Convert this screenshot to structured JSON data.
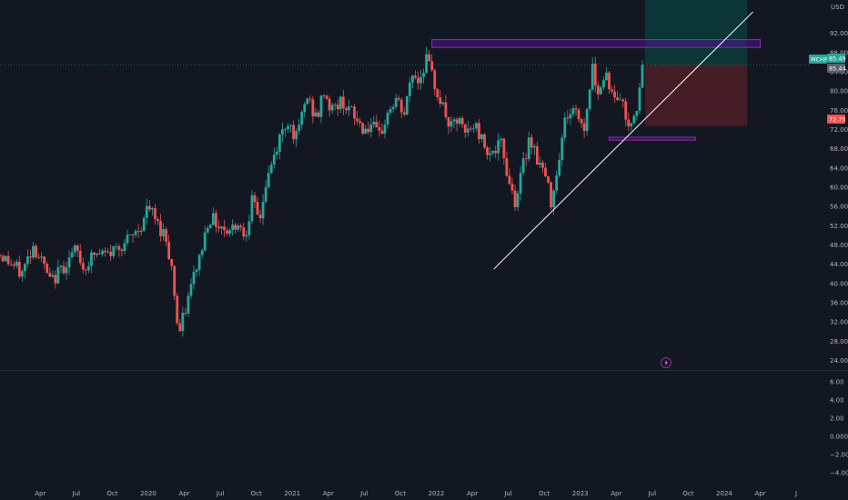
{
  "symbol": "MCHP",
  "currency": "USD",
  "colors": {
    "background": "#131722",
    "up": "#26a69a",
    "down": "#ef5350",
    "grid_line": "#2a2e39",
    "trendline": "#ffffff",
    "zone_fill": "#4a148c",
    "zone_stroke": "#9c27b0",
    "target_fill": "#0b3b3a",
    "stop_fill": "#4a1e27",
    "axis_text": "#b2b5be"
  },
  "price_labels": {
    "last": "85.49",
    "entry": "85.44",
    "stop": "72.75"
  },
  "indicator_icon": "lightning-icon",
  "chart_data": [
    {
      "type": "candlestick",
      "title": "",
      "ylabel": "USD",
      "ylim": [
        22,
        98
      ],
      "y_ticks": [
        "92.00",
        "88.00",
        "84.00",
        "80.00",
        "76.00",
        "72.00",
        "68.00",
        "64.00",
        "60.00",
        "56.00",
        "52.00",
        "48.00",
        "44.00",
        "40.00",
        "36.00",
        "32.00",
        "28.00",
        "24.00"
      ],
      "y_tick_values": [
        92,
        88,
        84,
        80,
        76,
        72,
        68,
        64,
        60,
        56,
        52,
        48,
        44,
        40,
        36,
        32,
        28,
        24
      ],
      "x_ticks": [
        "Apr",
        "Jul",
        "Oct",
        "2020",
        "Apr",
        "Jul",
        "Oct",
        "2021",
        "Apr",
        "Jul",
        "Oct",
        "2022",
        "Apr",
        "Jul",
        "Oct",
        "2023",
        "Apr",
        "Jul",
        "Oct",
        "2024",
        "Apr",
        "J"
      ],
      "x_tick_values": [
        2019.25,
        2019.5,
        2019.75,
        2020.0,
        2020.25,
        2020.5,
        2020.75,
        2021.0,
        2021.25,
        2021.5,
        2021.75,
        2022.0,
        2022.25,
        2022.5,
        2022.75,
        2023.0,
        2023.25,
        2023.5,
        2023.75,
        2024.0,
        2024.25,
        2024.5
      ],
      "xlim": [
        2018.97,
        2024.55
      ],
      "price_path": [
        [
          2018.97,
          46
        ],
        [
          2019.05,
          44
        ],
        [
          2019.12,
          42
        ],
        [
          2019.2,
          48
        ],
        [
          2019.27,
          44
        ],
        [
          2019.32,
          40
        ],
        [
          2019.42,
          44
        ],
        [
          2019.5,
          47
        ],
        [
          2019.55,
          43
        ],
        [
          2019.62,
          46
        ],
        [
          2019.72,
          46
        ],
        [
          2019.8,
          48
        ],
        [
          2019.87,
          49
        ],
        [
          2019.95,
          52
        ],
        [
          2020.0,
          56
        ],
        [
          2020.07,
          52
        ],
        [
          2020.12,
          50
        ],
        [
          2020.17,
          42
        ],
        [
          2020.2,
          32
        ],
        [
          2020.22,
          30
        ],
        [
          2020.27,
          36
        ],
        [
          2020.32,
          42
        ],
        [
          2020.37,
          47
        ],
        [
          2020.42,
          54
        ],
        [
          2020.5,
          52
        ],
        [
          2020.57,
          51
        ],
        [
          2020.62,
          53
        ],
        [
          2020.67,
          50
        ],
        [
          2020.72,
          57
        ],
        [
          2020.77,
          53
        ],
        [
          2020.82,
          61
        ],
        [
          2020.87,
          66
        ],
        [
          2020.92,
          71
        ],
        [
          2020.97,
          74
        ],
        [
          2021.03,
          70
        ],
        [
          2021.1,
          79
        ],
        [
          2021.17,
          74
        ],
        [
          2021.22,
          80
        ],
        [
          2021.27,
          76
        ],
        [
          2021.35,
          78
        ],
        [
          2021.42,
          75
        ],
        [
          2021.5,
          72
        ],
        [
          2021.55,
          73
        ],
        [
          2021.6,
          70
        ],
        [
          2021.67,
          76
        ],
        [
          2021.72,
          78
        ],
        [
          2021.78,
          75
        ],
        [
          2021.83,
          84
        ],
        [
          2021.88,
          82
        ],
        [
          2021.93,
          87
        ],
        [
          2021.97,
          83
        ],
        [
          2022.03,
          78
        ],
        [
          2022.1,
          72
        ],
        [
          2022.15,
          74
        ],
        [
          2022.2,
          71
        ],
        [
          2022.27,
          73
        ],
        [
          2022.33,
          69
        ],
        [
          2022.4,
          67
        ],
        [
          2022.45,
          69
        ],
        [
          2022.5,
          62
        ],
        [
          2022.55,
          57
        ],
        [
          2022.6,
          64
        ],
        [
          2022.65,
          71
        ],
        [
          2022.7,
          66
        ],
        [
          2022.75,
          63
        ],
        [
          2022.8,
          57
        ],
        [
          2022.85,
          66
        ],
        [
          2022.9,
          75
        ],
        [
          2022.97,
          76
        ],
        [
          2023.03,
          72
        ],
        [
          2023.08,
          85
        ],
        [
          2023.13,
          80
        ],
        [
          2023.18,
          84
        ],
        [
          2023.23,
          78
        ],
        [
          2023.28,
          79
        ],
        [
          2023.33,
          73
        ],
        [
          2023.38,
          76
        ],
        [
          2023.42,
          80
        ],
        [
          2023.45,
          85.49
        ]
      ],
      "trendline": {
        "start": [
          2022.4,
          43
        ],
        "end": [
          2024.2,
          96.5
        ]
      },
      "zones": [
        {
          "x_start": 2021.97,
          "x_end": 2024.25,
          "y_top": 90.7,
          "y_bottom": 89.1
        },
        {
          "x_start": 2023.2,
          "x_end": 2023.8,
          "y_top": 70.4,
          "y_bottom": 69.8
        }
      ],
      "position": {
        "x_start": 2023.45,
        "x_end": 2024.16,
        "entry": 85.44,
        "target": 98,
        "stop": 72.75
      },
      "indicator": {
        "ylim": [
          -5,
          7
        ],
        "y_ticks": [
          "6.00",
          "4.00",
          "2.00",
          "0.000",
          "−2.00",
          "−4.00"
        ],
        "y_tick_values": [
          6,
          4,
          2,
          0,
          -2,
          -4
        ]
      }
    }
  ]
}
